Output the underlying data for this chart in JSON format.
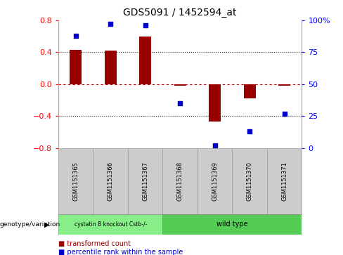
{
  "title": "GDS5091 / 1452594_at",
  "samples": [
    "GSM1151365",
    "GSM1151366",
    "GSM1151367",
    "GSM1151368",
    "GSM1151369",
    "GSM1151370",
    "GSM1151371"
  ],
  "bar_values": [
    0.43,
    0.42,
    0.6,
    -0.02,
    -0.47,
    -0.18,
    -0.02
  ],
  "percentile_values": [
    88,
    97,
    96,
    35,
    2,
    13,
    27
  ],
  "ylim": [
    -0.8,
    0.8
  ],
  "yticks": [
    -0.8,
    -0.4,
    0.0,
    0.4,
    0.8
  ],
  "right_yticks": [
    0,
    25,
    50,
    75,
    100
  ],
  "bar_color": "#990000",
  "dot_color": "#0000CC",
  "zero_line_color": "#CC0000",
  "hline_color": "#333333",
  "group1_label": "cystatin B knockout Cstb-/-",
  "group2_label": "wild type",
  "group1_color": "#88EE88",
  "group2_color": "#55CC55",
  "group1_samples": 3,
  "group2_samples": 4,
  "legend_bar_label": "transformed count",
  "legend_dot_label": "percentile rank within the sample",
  "genotype_label": "genotype/variation",
  "bar_width": 0.35
}
